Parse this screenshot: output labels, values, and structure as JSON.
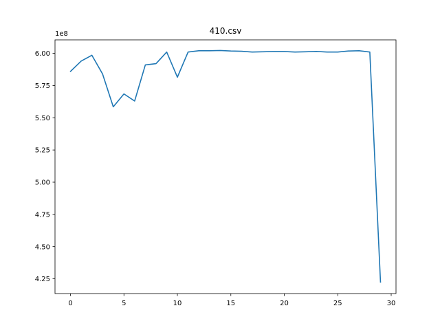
{
  "chart_data": {
    "type": "line",
    "title": "410.csv",
    "xlabel": "",
    "ylabel": "",
    "offset_label": "1e8",
    "xlim": [
      -1.45,
      30.45
    ],
    "ylim": [
      4.1355,
      6.1045
    ],
    "x_ticks": [
      0,
      5,
      10,
      15,
      20,
      25,
      30
    ],
    "x_tick_labels": [
      "0",
      "5",
      "10",
      "15",
      "20",
      "25",
      "30"
    ],
    "y_ticks": [
      4.25,
      4.5,
      4.75,
      5.0,
      5.25,
      5.5,
      5.75,
      6.0
    ],
    "y_tick_labels": [
      "4.25",
      "4.50",
      "4.75",
      "5.00",
      "5.25",
      "5.50",
      "5.75",
      "6.00"
    ],
    "grid": false,
    "series_color": "#1f77b4",
    "x": [
      0,
      1,
      2,
      3,
      4,
      5,
      6,
      7,
      8,
      9,
      10,
      11,
      12,
      13,
      14,
      15,
      16,
      17,
      18,
      19,
      20,
      21,
      22,
      23,
      24,
      25,
      26,
      27,
      28,
      29
    ],
    "y": [
      5.86,
      5.94,
      5.985,
      5.84,
      5.585,
      5.685,
      5.63,
      5.91,
      5.92,
      6.01,
      5.815,
      6.01,
      6.02,
      6.02,
      6.022,
      6.018,
      6.016,
      6.01,
      6.012,
      6.014,
      6.014,
      6.01,
      6.012,
      6.015,
      6.01,
      6.01,
      6.018,
      6.02,
      6.01,
      4.225
    ]
  }
}
